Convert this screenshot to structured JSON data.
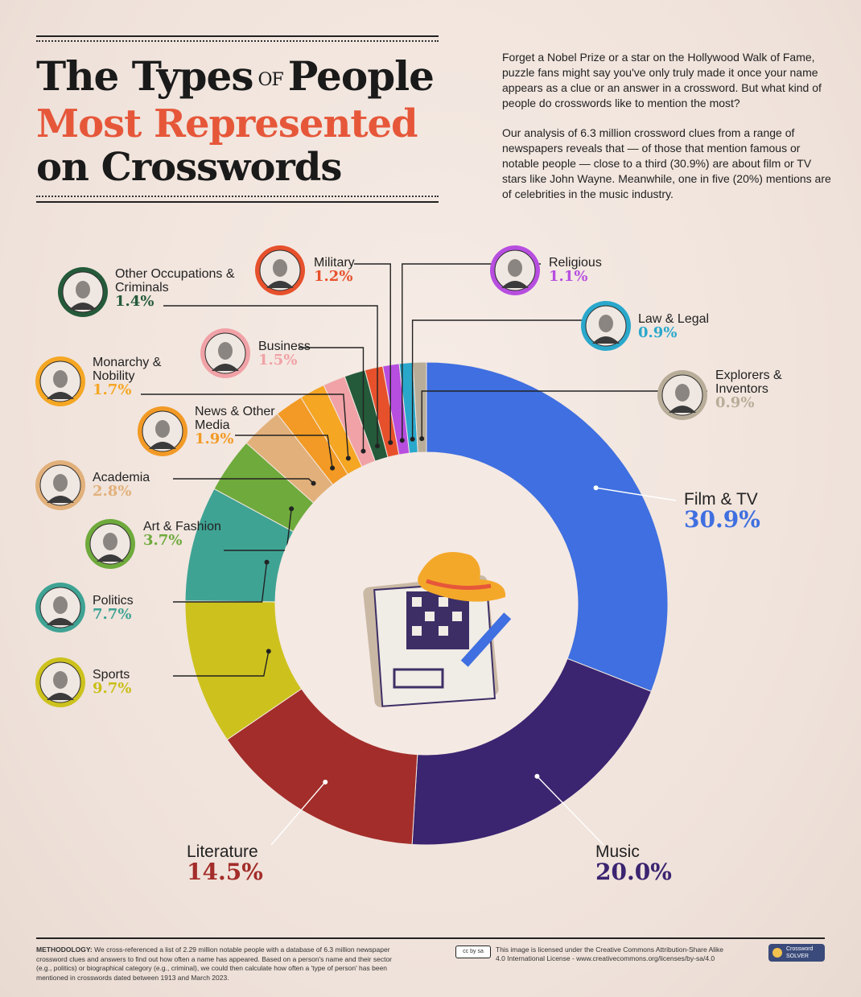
{
  "title": {
    "line1a": "The Types",
    "line1b": "OF",
    "line1c": "People",
    "line2": "Most Represented",
    "line3": "on Crosswords"
  },
  "intro": {
    "p1": "Forget a Nobel Prize or a star on the Hollywood Walk of Fame, puzzle fans might say you've only truly made it once your name appears as a clue or an answer in a crossword. But what kind of people do crosswords like to mention the most?",
    "p2": "Our analysis of 6.3 million crossword clues from a range of newspapers reveals that — of those that mention famous or notable people — close to a third (30.9%) are about film or TV stars like John Wayne. Meanwhile, one in five (20%) mentions are of celebrities in the music industry."
  },
  "colors": {
    "title_accent": "#e6573a",
    "background": "#f2e6df"
  },
  "chart_data": {
    "type": "pie",
    "title": "The Types of People Most Represented on Crosswords",
    "donut": true,
    "categories": [
      "Film & TV",
      "Music",
      "Literature",
      "Sports",
      "Politics",
      "Art & Fashion",
      "Academia",
      "News & Other Media",
      "Monarchy & Nobility",
      "Business",
      "Other Occupations & Criminals",
      "Military",
      "Religious",
      "Law & Legal",
      "Explorers & Inventors"
    ],
    "values": [
      30.9,
      20.0,
      14.5,
      9.7,
      7.7,
      3.7,
      2.8,
      1.9,
      1.7,
      1.5,
      1.4,
      1.2,
      1.1,
      0.9,
      0.9
    ],
    "value_labels": [
      "30.9%",
      "20.0%",
      "14.5%",
      "9.7%",
      "7.7%",
      "3.7%",
      "2.8%",
      "1.9%",
      "1.7%",
      "1.5%",
      "1.4%",
      "1.2%",
      "1.1%",
      "0.9%",
      "0.9%"
    ],
    "colors": [
      "#3f6fe0",
      "#3b2470",
      "#a32d2a",
      "#cdc21d",
      "#3fa394",
      "#6faa3c",
      "#e2b07a",
      "#f29a25",
      "#f5a623",
      "#f0a2a6",
      "#245a3a",
      "#e6512c",
      "#b74ee0",
      "#2aa8cc",
      "#b8ad98"
    ]
  },
  "footer": {
    "methodology_label": "METHODOLOGY:",
    "methodology_text": "We cross-referenced a list of 2.29 million notable people with a database of 6.3 million newspaper crossword clues and answers to find out how often a name has appeared. Based on a person's name and their sector (e.g., politics) or biographical category (e.g., criminal), we could then calculate how often a 'type of person' has been mentioned in crosswords dated between 1913 and March 2023.",
    "license_text": "This image is licensed under the Creative Commons Attribution-Share Alike 4.0 International License - www.creativecommons.org/licenses/by-sa/4.0",
    "cc_badge": "cc by sa",
    "brand_line1": "Crossword",
    "brand_line2": "SOLVER"
  }
}
